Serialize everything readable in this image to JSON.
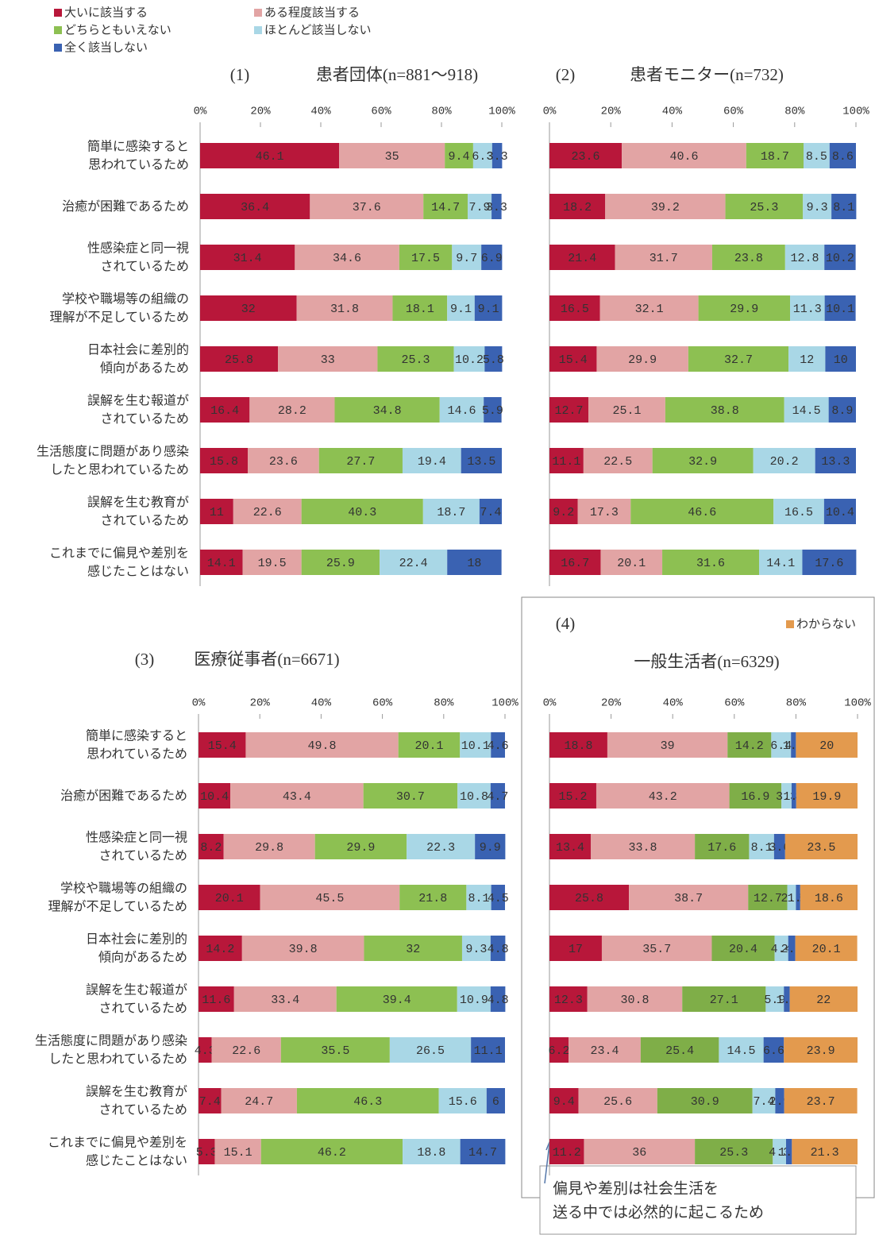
{
  "chart_data": [
    {
      "type": "bar",
      "orientation": "horizontal",
      "stacked": true,
      "number": "(1)",
      "title": "患者団体(n=881～918)",
      "legend": "top-left",
      "categories": [
        [
          "簡単に感染すると",
          "思われているため"
        ],
        [
          "治癒が困難であるため"
        ],
        [
          "性感染症と同一視",
          "されているため"
        ],
        [
          "学校や職場等の組織の",
          "理解が不足しているため"
        ],
        [
          "日本社会に差別的",
          "傾向があるため"
        ],
        [
          "誤解を生む報道が",
          "されているため"
        ],
        [
          "生活態度に問題があり感染",
          "したと思われているため"
        ],
        [
          "誤解を生む教育が",
          "されているため"
        ],
        [
          "これまでに偏見や差別を",
          "感じたことはない"
        ]
      ],
      "series": [
        {
          "name": "大いに該当する",
          "color": "#b8173a",
          "values": [
            46.1,
            36.4,
            31.4,
            32,
            25.8,
            16.4,
            15.8,
            11,
            14.1
          ]
        },
        {
          "name": "ある程度該当する",
          "color": "#e2a4a4",
          "values": [
            35,
            37.6,
            34.6,
            31.8,
            33,
            28.2,
            23.6,
            22.6,
            19.5
          ]
        },
        {
          "name": "どちらともいえない",
          "color": "#8dc052",
          "values": [
            9.4,
            14.7,
            17.5,
            18.1,
            25.3,
            34.8,
            27.7,
            40.3,
            25.9
          ]
        },
        {
          "name": "ほとんど該当しない",
          "color": "#a9d7e6",
          "values": [
            6.3,
            7.9,
            9.7,
            9.1,
            10.2,
            14.6,
            19.4,
            18.7,
            22.4
          ]
        },
        {
          "name": "全く該当しない",
          "color": "#3a62b2",
          "values": [
            3.3,
            3.3,
            6.9,
            9.1,
            5.8,
            5.9,
            13.5,
            7.4,
            18
          ]
        }
      ],
      "xlim": [
        0,
        100
      ],
      "xticks": [
        {
          "value": 0,
          "label": "0%"
        },
        {
          "value": 20,
          "label": "20%"
        },
        {
          "value": 40,
          "label": "40%"
        },
        {
          "value": 60,
          "label": "60%"
        },
        {
          "value": 80,
          "label": "80%"
        },
        {
          "value": 100,
          "label": "100%"
        }
      ]
    },
    {
      "type": "bar",
      "orientation": "horizontal",
      "stacked": true,
      "number": "(2)",
      "title": "患者モニター(n=732)",
      "series": [
        {
          "name": "大いに該当する",
          "color": "#b8173a",
          "values": [
            23.6,
            18.2,
            21.4,
            16.5,
            15.4,
            12.7,
            11.1,
            9.2,
            16.7
          ]
        },
        {
          "name": "ある程度該当する",
          "color": "#e2a4a4",
          "values": [
            40.6,
            39.2,
            31.7,
            32.1,
            29.9,
            25.1,
            22.5,
            17.3,
            20.1
          ]
        },
        {
          "name": "どちらともいえない",
          "color": "#8dc052",
          "values": [
            18.7,
            25.3,
            23.8,
            29.9,
            32.7,
            38.8,
            32.9,
            46.6,
            31.6
          ]
        },
        {
          "name": "ほとんど該当しない",
          "color": "#a9d7e6",
          "values": [
            8.5,
            9.3,
            12.8,
            11.3,
            12,
            14.5,
            20.2,
            16.5,
            14.1
          ]
        },
        {
          "name": "全く該当しない",
          "color": "#3a62b2",
          "values": [
            8.6,
            8.1,
            10.2,
            10.1,
            10,
            8.9,
            13.3,
            10.4,
            17.6
          ]
        }
      ],
      "xlim": [
        0,
        100
      ],
      "xticks": [
        {
          "value": 0,
          "label": "0%"
        },
        {
          "value": 20,
          "label": "20%"
        },
        {
          "value": 40,
          "label": "40%"
        },
        {
          "value": 60,
          "label": "60%"
        },
        {
          "value": 80,
          "label": "80%"
        },
        {
          "value": 100,
          "label": "100%"
        }
      ]
    },
    {
      "type": "bar",
      "orientation": "horizontal",
      "stacked": true,
      "number": "(3)",
      "title": "医療従事者(n=6671)",
      "categories": [
        [
          "簡単に感染すると",
          "思われているため"
        ],
        [
          "治癒が困難であるため"
        ],
        [
          "性感染症と同一視",
          "されているため"
        ],
        [
          "学校や職場等の組織の",
          "理解が不足しているため"
        ],
        [
          "日本社会に差別的",
          "傾向があるため"
        ],
        [
          "誤解を生む報道が",
          "されているため"
        ],
        [
          "生活態度に問題があり感染",
          "したと思われているため"
        ],
        [
          "誤解を生む教育が",
          "されているため"
        ],
        [
          "これまでに偏見や差別を",
          "感じたことはない"
        ]
      ],
      "series": [
        {
          "name": "大いに該当する",
          "color": "#b8173a",
          "values": [
            15.4,
            10.4,
            8.2,
            20.1,
            14.2,
            11.6,
            4.3,
            7.4,
            5.3
          ]
        },
        {
          "name": "ある程度該当する",
          "color": "#e2a4a4",
          "values": [
            49.8,
            43.4,
            29.8,
            45.5,
            39.8,
            33.4,
            22.6,
            24.7,
            15.1
          ]
        },
        {
          "name": "どちらともいえない",
          "color": "#8dc052",
          "values": [
            20.1,
            30.7,
            29.9,
            21.8,
            32,
            39.4,
            35.5,
            46.3,
            46.2
          ]
        },
        {
          "name": "ほとんど該当しない",
          "color": "#a9d7e6",
          "values": [
            10.1,
            10.8,
            22.3,
            8.1,
            9.3,
            10.9,
            26.5,
            15.6,
            18.8
          ]
        },
        {
          "name": "全く該当しない",
          "color": "#3a62b2",
          "values": [
            4.6,
            4.7,
            9.9,
            4.5,
            4.8,
            4.8,
            11.1,
            6,
            14.7
          ]
        }
      ],
      "xlim": [
        0,
        100
      ],
      "xticks": [
        {
          "value": 0,
          "label": "0%"
        },
        {
          "value": 20,
          "label": "20%"
        },
        {
          "value": 40,
          "label": "40%"
        },
        {
          "value": 60,
          "label": "60%"
        },
        {
          "value": 80,
          "label": "80%"
        },
        {
          "value": 100,
          "label": "100%"
        }
      ]
    },
    {
      "type": "bar",
      "orientation": "horizontal",
      "stacked": true,
      "number": "(4)",
      "title": "一般生活者(n=6329)",
      "legend": "top-right",
      "series": [
        {
          "name": "大いに該当する",
          "color": "#b8173a",
          "values": [
            18.8,
            15.2,
            13.4,
            25.8,
            17,
            12.3,
            6.2,
            9.4,
            11.2
          ]
        },
        {
          "name": "ある程度該当する",
          "color": "#e2a4a4",
          "values": [
            39,
            43.2,
            33.8,
            38.7,
            35.7,
            30.8,
            23.4,
            25.6,
            36
          ]
        },
        {
          "name": "どちらともいえない",
          "color": "#7fae48",
          "values": [
            14.2,
            16.9,
            17.6,
            12.7,
            20.4,
            27.1,
            25.4,
            30.9,
            25.3
          ]
        },
        {
          "name": "ほとんど該当しない",
          "color": "#a9d7e6",
          "values": [
            6.4,
            3.3,
            8.1,
            2.8,
            4.4,
            5.9,
            14.5,
            7.4,
            4.3
          ]
        },
        {
          "name": "全く該当しない",
          "color": "#3a62b2",
          "values": [
            1.6,
            1.5,
            3.6,
            1.4,
            2.3,
            1.9,
            6.6,
            2.9,
            1.9
          ]
        },
        {
          "name": "わからない",
          "color": "#e39a4e",
          "values": [
            20,
            19.9,
            23.5,
            18.6,
            20.1,
            22,
            23.9,
            23.7,
            21.3
          ]
        }
      ],
      "xlim": [
        0,
        100
      ],
      "xticks": [
        {
          "value": 0,
          "label": "0%"
        },
        {
          "value": 20,
          "label": "20%"
        },
        {
          "value": 40,
          "label": "40%"
        },
        {
          "value": 60,
          "label": "60%"
        },
        {
          "value": 80,
          "label": "80%"
        },
        {
          "value": 100,
          "label": "100%"
        }
      ],
      "annotation": [
        "偏見や差別は社会生活を",
        "送る中では必然的に起こるため"
      ]
    }
  ]
}
